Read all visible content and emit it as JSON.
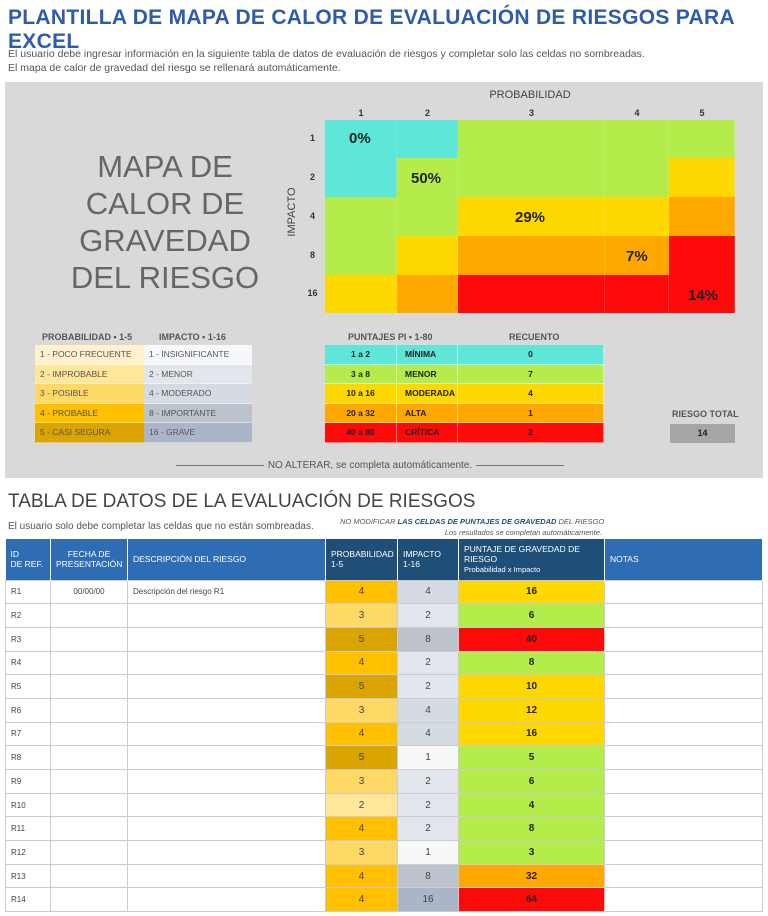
{
  "title": "PLANTILLA DE MAPA DE CALOR DE EVALUACIÓN DE RIESGOS PARA EXCEL",
  "intro": [
    "El usuario debe ingresar información en la siguiente tabla de datos de evaluación de riesgos y completar solo las celdas no sombreadas.",
    "El mapa de calor de gravedad del riesgo se rellenará automáticamente."
  ],
  "heatmap": {
    "title": "MAPA DE CALOR DE GRAVEDAD DEL RIESGO",
    "title_lines": [
      "MAPA DE",
      "CALOR DE",
      "GRAVEDAD",
      "DEL RIESGO"
    ],
    "x_label": "PROBABILIDAD",
    "y_label": "IMPACTO",
    "x_ticks": [
      "1",
      "2",
      "3",
      "4",
      "5"
    ],
    "y_ticks": [
      "1",
      "2",
      "4",
      "8",
      "16"
    ],
    "percent_labels": [
      {
        "row": 0,
        "col": 0,
        "text": "0%"
      },
      {
        "row": 1,
        "col": 1,
        "text": "50%"
      },
      {
        "row": 2,
        "col": 2,
        "text": "29%"
      },
      {
        "row": 3,
        "col": 3,
        "text": "7%"
      },
      {
        "row": 4,
        "col": 4,
        "text": "14%"
      }
    ]
  },
  "colors": {
    "minima": "#5ee6d8",
    "menor": "#b4ec4c",
    "moderada": "#ffd800",
    "alta": "#ffa800",
    "critica": "#ff0a0a",
    "prob": [
      "#fff2cc",
      "#ffe699",
      "#ffd966",
      "#ffc000",
      "#daa500"
    ],
    "imp": {
      "1": "#f7f8fa",
      "2": "#e3e7ed",
      "4": "#d5dbe3",
      "8": "#bcc3cd",
      "16": "#aab6c7"
    }
  },
  "legend": {
    "prob_header": "PROBABILIDAD  •  1-5",
    "imp_header": "IMPACTO  •  1-16",
    "prob": [
      "1 - POCO FRECUENTE",
      "2 - IMPROBABLE",
      "3 - POSIBLE",
      "4 - PROBABLE",
      "5 - CASI SEGURA"
    ],
    "imp": [
      "1 - INSIGNIFICANTE",
      "2 - MENOR",
      "4 - MODERADO",
      "8 - IMPORTANTE",
      "16 - GRAVE"
    ],
    "score_header": "PUNTAJES PI  •  1-80",
    "count_header": "RECUENTO",
    "scores": [
      {
        "range": "1 a 2",
        "level": "MÍNIMA",
        "count": "0",
        "key": "minima"
      },
      {
        "range": "3 a 8",
        "level": "MENOR",
        "count": "7",
        "key": "menor"
      },
      {
        "range": "10 a 16",
        "level": "MODERADA",
        "count": "4",
        "key": "moderada"
      },
      {
        "range": "20 a 32",
        "level": "ALTA",
        "count": "1",
        "key": "alta"
      },
      {
        "range": "40 a 80",
        "level": "CRÍTICA",
        "count": "2",
        "key": "critica"
      }
    ],
    "total_label": "RIESGO TOTAL",
    "total": "14"
  },
  "note": "NO ALTERAR, se completa automáticamente.",
  "table": {
    "title": "TABLA DE DATOS DE LA EVALUACIÓN DE RIESGOS",
    "instructions": "El usuario solo debe completar las celdas que no están sombreadas.",
    "warn_a": "NO MODIFICAR ",
    "warn_b": "LAS CELDAS DE PUNTAJES DE GRAVEDAD",
    "warn_c": " DEL RIESGO",
    "warn2": "Los resultados se completan automáticamente.",
    "headers": {
      "id": [
        "ID",
        "DE REF."
      ],
      "fecha": [
        "FECHA DE",
        "PRESENTACIÓN"
      ],
      "desc": "DESCRIPCIÓN DEL RIESGO",
      "prob": [
        "PROBABILIDAD",
        "1-5"
      ],
      "imp": [
        "IMPACTO",
        "1-16"
      ],
      "score": [
        "PUNTAJE DE GRAVEDAD DE RIESGO",
        "Probabilidad x Impacto"
      ],
      "notas": "NOTAS"
    },
    "rows": [
      {
        "id": "R1",
        "fecha": "00/00/00",
        "desc": "Descripción del riesgo R1",
        "prob": "4",
        "imp": "4",
        "score": "16",
        "notas": ""
      },
      {
        "id": "R2",
        "fecha": "",
        "desc": "",
        "prob": "3",
        "imp": "2",
        "score": "6",
        "notas": ""
      },
      {
        "id": "R3",
        "fecha": "",
        "desc": "",
        "prob": "5",
        "imp": "8",
        "score": "40",
        "notas": ""
      },
      {
        "id": "R4",
        "fecha": "",
        "desc": "",
        "prob": "4",
        "imp": "2",
        "score": "8",
        "notas": ""
      },
      {
        "id": "R5",
        "fecha": "",
        "desc": "",
        "prob": "5",
        "imp": "2",
        "score": "10",
        "notas": ""
      },
      {
        "id": "R6",
        "fecha": "",
        "desc": "",
        "prob": "3",
        "imp": "4",
        "score": "12",
        "notas": ""
      },
      {
        "id": "R7",
        "fecha": "",
        "desc": "",
        "prob": "4",
        "imp": "4",
        "score": "16",
        "notas": ""
      },
      {
        "id": "R8",
        "fecha": "",
        "desc": "",
        "prob": "5",
        "imp": "1",
        "score": "5",
        "notas": ""
      },
      {
        "id": "R9",
        "fecha": "",
        "desc": "",
        "prob": "3",
        "imp": "2",
        "score": "6",
        "notas": ""
      },
      {
        "id": "R10",
        "fecha": "",
        "desc": "",
        "prob": "2",
        "imp": "2",
        "score": "4",
        "notas": ""
      },
      {
        "id": "R11",
        "fecha": "",
        "desc": "",
        "prob": "4",
        "imp": "2",
        "score": "8",
        "notas": ""
      },
      {
        "id": "R12",
        "fecha": "",
        "desc": "",
        "prob": "3",
        "imp": "1",
        "score": "3",
        "notas": ""
      },
      {
        "id": "R13",
        "fecha": "",
        "desc": "",
        "prob": "4",
        "imp": "8",
        "score": "32",
        "notas": ""
      },
      {
        "id": "R14",
        "fecha": "",
        "desc": "",
        "prob": "4",
        "imp": "16",
        "score": "64",
        "notas": ""
      }
    ]
  }
}
